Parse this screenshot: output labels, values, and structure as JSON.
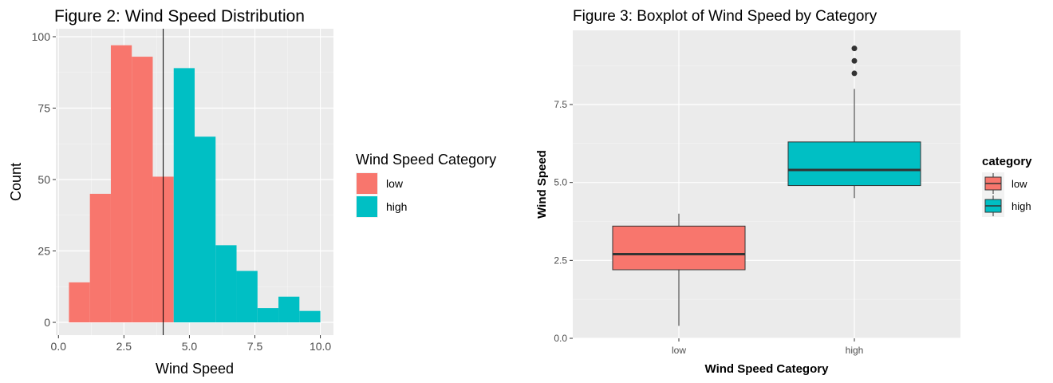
{
  "chart_data": [
    {
      "type": "bar",
      "subtype": "histogram",
      "title": "Figure 2: Wind Speed Distribution",
      "xlabel": "Wind Speed",
      "ylabel": "Count",
      "xlim": [
        0,
        10
      ],
      "ylim": [
        0,
        100
      ],
      "xticks": [
        "0.0",
        "2.5",
        "5.0",
        "7.5",
        "10.0"
      ],
      "yticks": [
        "0",
        "25",
        "50",
        "75",
        "100"
      ],
      "grid": true,
      "legend": {
        "title": "Wind Speed Category",
        "position": "right",
        "entries": [
          {
            "label": "low",
            "color": "#F8766D"
          },
          {
            "label": "high",
            "color": "#00BFC4"
          }
        ]
      },
      "bins": [
        {
          "x0": 0.4,
          "x1": 1.2,
          "count": 14,
          "category": "low"
        },
        {
          "x0": 1.2,
          "x1": 2.0,
          "count": 45,
          "category": "low"
        },
        {
          "x0": 2.0,
          "x1": 2.8,
          "count": 97,
          "category": "low"
        },
        {
          "x0": 2.8,
          "x1": 3.6,
          "count": 93,
          "category": "low"
        },
        {
          "x0": 3.6,
          "x1": 4.4,
          "count": 51,
          "category": "low"
        },
        {
          "x0": 4.4,
          "x1": 5.2,
          "count": 89,
          "category": "high"
        },
        {
          "x0": 5.2,
          "x1": 6.0,
          "count": 65,
          "category": "high"
        },
        {
          "x0": 6.0,
          "x1": 6.8,
          "count": 27,
          "category": "high"
        },
        {
          "x0": 6.8,
          "x1": 7.6,
          "count": 18,
          "category": "high"
        },
        {
          "x0": 7.6,
          "x1": 8.4,
          "count": 5,
          "category": "high"
        },
        {
          "x0": 8.4,
          "x1": 9.2,
          "count": 9,
          "category": "high"
        },
        {
          "x0": 9.2,
          "x1": 10.0,
          "count": 4,
          "category": "high"
        }
      ],
      "vline": 4.0
    },
    {
      "type": "boxplot",
      "title": "Figure 3: Boxplot of Wind Speed by Category",
      "xlabel": "Wind Speed Category",
      "ylabel": "Wind Speed",
      "categories": [
        "low",
        "high"
      ],
      "ylim": [
        0,
        9.8
      ],
      "yticks": [
        "0.0",
        "2.5",
        "5.0",
        "7.5"
      ],
      "grid": true,
      "legend": {
        "title": "category",
        "position": "right",
        "entries": [
          {
            "label": "low",
            "color": "#F8766D"
          },
          {
            "label": "high",
            "color": "#00BFC4"
          }
        ]
      },
      "boxes": [
        {
          "category": "low",
          "min": 0.4,
          "q1": 2.2,
          "median": 2.7,
          "q3": 3.6,
          "max": 4.0,
          "outliers": [],
          "color": "#F8766D"
        },
        {
          "category": "high",
          "min": 4.5,
          "q1": 4.9,
          "median": 5.4,
          "q3": 6.3,
          "max": 8.0,
          "outliers": [
            8.5,
            8.9,
            9.3
          ],
          "color": "#00BFC4"
        }
      ]
    }
  ]
}
